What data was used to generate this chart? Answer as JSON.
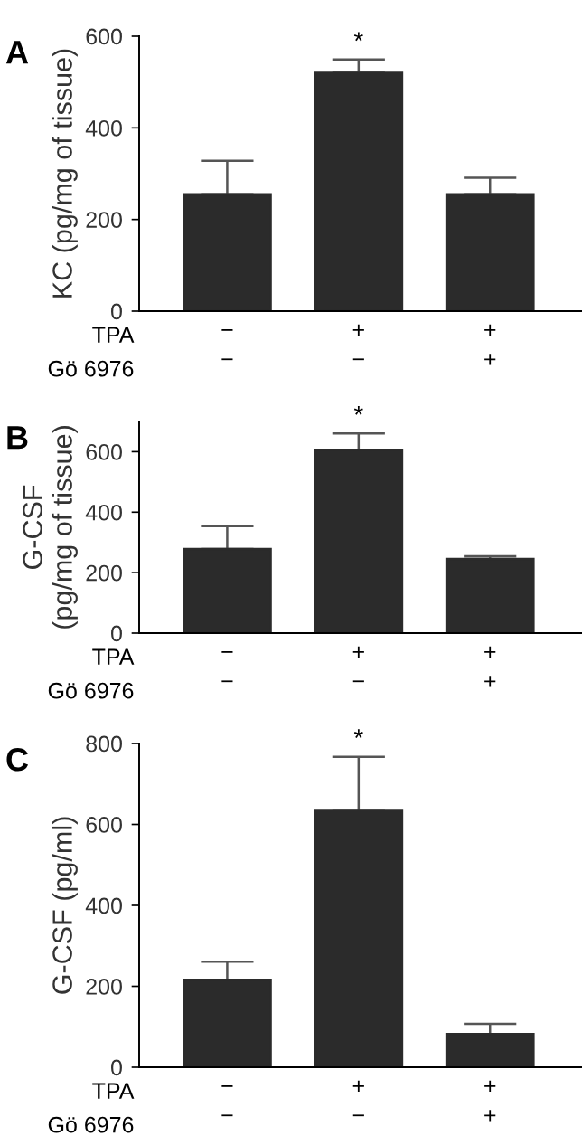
{
  "chart_data": [
    {
      "type": "bar",
      "title": "A",
      "ylabel": "KC (pg/mg of tissue)",
      "categories": [
        "−\n−",
        "+\n−",
        "+\n+"
      ],
      "values": [
        255,
        520,
        255
      ],
      "errors": [
        [
          255,
          328
        ],
        [
          520,
          549
        ],
        [
          255,
          291
        ]
      ],
      "color": "#2b2b2b",
      "ylim": [
        0,
        600
      ],
      "yticks": [
        0,
        200,
        400,
        600
      ],
      "grid": false,
      "annotations": [
        "TPA",
        "Gö 6976",
        {
          "text": "*",
          "x": "+\n−",
          "y": 549
        }
      ]
    },
    {
      "type": "bar",
      "title": "B",
      "ylabel": "G-CSF\n(pg/mg of tissue)",
      "categories": [
        "−\n−",
        "+\n−",
        "+\n+"
      ],
      "values": [
        278,
        606,
        245
      ],
      "errors": [
        [
          278,
          354
        ],
        [
          606,
          660
        ],
        [
          245,
          254
        ]
      ],
      "color": "#2b2b2b",
      "ylim": [
        0,
        700
      ],
      "yticks": [
        0,
        200,
        400,
        600
      ],
      "grid": false,
      "annotations": [
        "TPA",
        "Gö 6976",
        {
          "text": "*",
          "x": "+\n−",
          "y": 660
        }
      ]
    },
    {
      "type": "bar",
      "title": "C",
      "ylabel": "G-CSF (pg/ml)",
      "categories": [
        "−\n−",
        "+\n−",
        "+\n+"
      ],
      "values": [
        216,
        633,
        82
      ],
      "errors": [
        [
          216,
          261
        ],
        [
          633,
          767
        ],
        [
          82,
          107
        ]
      ],
      "color": "#2b2b2b",
      "ylim": [
        0,
        800
      ],
      "yticks": [
        0,
        200,
        400,
        600,
        800
      ],
      "grid": false,
      "annotations": [
        "TPA",
        "Gö 6976",
        {
          "text": "*",
          "x": "+\n−",
          "y": 767
        }
      ]
    }
  ]
}
